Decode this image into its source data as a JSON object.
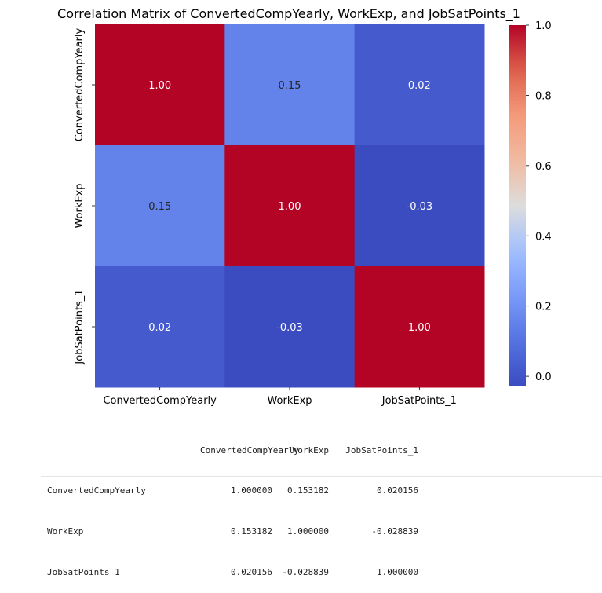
{
  "chart_data": {
    "type": "heatmap",
    "title": "Correlation Matrix of ConvertedCompYearly, WorkExp, and JobSatPoints_1",
    "x_labels": [
      "ConvertedCompYearly",
      "WorkExp",
      "JobSatPoints_1"
    ],
    "y_labels": [
      "ConvertedCompYearly",
      "WorkExp",
      "JobSatPoints_1"
    ],
    "values": [
      [
        1.0,
        0.15,
        0.02
      ],
      [
        0.15,
        1.0,
        -0.03
      ],
      [
        0.02,
        -0.03,
        1.0
      ]
    ],
    "annotations": [
      [
        "1.00",
        "0.15",
        "0.02"
      ],
      [
        "0.15",
        "1.00",
        "-0.03"
      ],
      [
        "0.02",
        "-0.03",
        "1.00"
      ]
    ],
    "colormap": "coolwarm",
    "vmin": -0.028839,
    "vmax": 1.0,
    "colorbar_ticks": [
      0.0,
      0.2,
      0.4,
      0.6,
      0.8,
      1.0
    ],
    "colorbar_tick_labels": [
      "0.0",
      "0.2",
      "0.4",
      "0.6",
      "0.8",
      "1.0"
    ]
  },
  "console_output": {
    "header": [
      "",
      "ConvertedCompYearly",
      "WorkExp",
      "JobSatPoints_1"
    ],
    "rows": [
      [
        "ConvertedCompYearly",
        "1.000000",
        "0.153182",
        "0.020156"
      ],
      [
        "WorkExp",
        "0.153182",
        "1.000000",
        "-0.028839"
      ],
      [
        "JobSatPoints_1",
        "0.020156",
        "-0.028839",
        "1.000000"
      ]
    ]
  }
}
